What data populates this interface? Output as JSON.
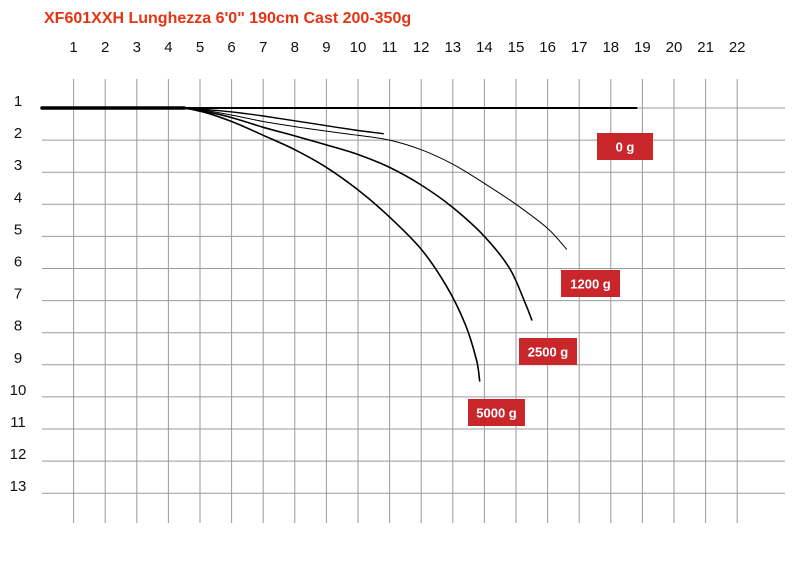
{
  "title": "XF601XXH Lunghezza 6'0\" 190cm Cast 200-350g",
  "colors": {
    "title": "#e63312",
    "grid": "#9a9a9a",
    "curve": "#000000",
    "badge": "#c8262b",
    "badge_text": "#ffffff"
  },
  "chart_data": {
    "type": "line",
    "title": "XF601XXH Lunghezza 6'0\" 190cm Cast 200-350g",
    "xlabel": "",
    "ylabel": "",
    "x_ticks": [
      "1",
      "2",
      "3",
      "4",
      "5",
      "6",
      "7",
      "8",
      "9",
      "10",
      "11",
      "12",
      "13",
      "14",
      "15",
      "16",
      "17",
      "18",
      "19",
      "20",
      "21",
      "22"
    ],
    "y_ticks": [
      "1",
      "2",
      "3",
      "4",
      "5",
      "6",
      "7",
      "8",
      "9",
      "10",
      "11",
      "12",
      "13"
    ],
    "xlim": [
      0,
      22
    ],
    "ylim": [
      1,
      14.2
    ],
    "y_inverted": true,
    "grid": true,
    "series": [
      {
        "name": "0 g",
        "points": [
          [
            0,
            1
          ],
          [
            17,
            1
          ],
          [
            18.5,
            1
          ]
        ],
        "stroke": 2
      },
      {
        "name": "0 g",
        "points": [
          [
            0,
            1
          ],
          [
            4,
            1
          ],
          [
            5,
            1.05
          ],
          [
            6,
            1.22
          ],
          [
            7,
            1.42
          ],
          [
            8,
            1.58
          ],
          [
            9,
            1.72
          ],
          [
            10,
            1.85
          ],
          [
            11,
            2.0
          ],
          [
            12,
            2.3
          ],
          [
            13,
            2.75
          ],
          [
            14,
            3.35
          ],
          [
            15,
            4.0
          ],
          [
            16,
            4.75
          ],
          [
            16.6,
            5.4
          ]
        ],
        "stroke": 1
      },
      {
        "name": "1200 g",
        "points": [
          [
            0,
            1
          ],
          [
            4,
            1
          ],
          [
            5,
            1.08
          ],
          [
            6,
            1.3
          ],
          [
            7,
            1.6
          ],
          [
            8,
            1.87
          ],
          [
            9,
            2.15
          ],
          [
            10,
            2.45
          ],
          [
            11,
            2.85
          ],
          [
            12,
            3.4
          ],
          [
            13,
            4.1
          ],
          [
            14,
            5.0
          ],
          [
            14.8,
            6.0
          ],
          [
            15.3,
            7.1
          ],
          [
            15.5,
            7.6
          ]
        ],
        "stroke": 1.6
      },
      {
        "name": "2500 g",
        "points": [
          [
            0,
            1
          ],
          [
            4,
            1
          ],
          [
            5,
            1.1
          ],
          [
            6,
            1.42
          ],
          [
            7,
            1.85
          ],
          [
            8,
            2.3
          ],
          [
            9,
            2.85
          ],
          [
            10,
            3.55
          ],
          [
            11,
            4.4
          ],
          [
            12,
            5.4
          ],
          [
            12.8,
            6.55
          ],
          [
            13.4,
            7.75
          ],
          [
            13.75,
            8.85
          ],
          [
            13.85,
            9.5
          ]
        ],
        "stroke": 1.6
      },
      {
        "name": "5000 g",
        "points": [
          [
            0,
            1
          ],
          [
            4,
            1
          ],
          [
            5,
            1.04
          ],
          [
            6,
            1.12
          ],
          [
            7,
            1.25
          ],
          [
            8,
            1.4
          ],
          [
            9,
            1.55
          ],
          [
            10,
            1.7
          ],
          [
            10.8,
            1.8
          ]
        ],
        "stroke": 1.4
      }
    ],
    "annotations": [
      "0 g",
      "1200 g",
      "2500 g",
      "5000 g"
    ]
  }
}
